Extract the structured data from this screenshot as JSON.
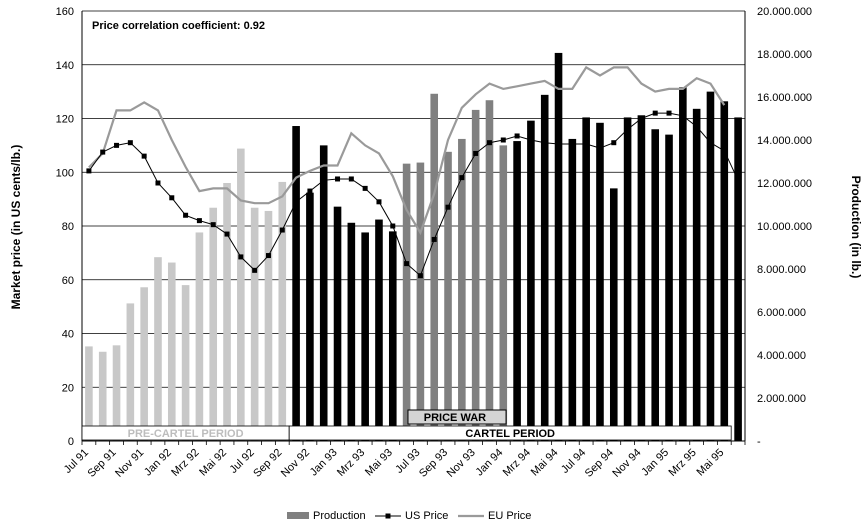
{
  "chart_data": {
    "type": "bar",
    "annotation": "Price correlation coefficient: 0.92",
    "ylabel_left": "Market price (in US cents/lb.)",
    "ylabel_right": "Production (in lb.)",
    "ylim_left": [
      0,
      160
    ],
    "ylim_right": [
      0,
      20000000
    ],
    "y_ticks_left": [
      "0",
      "20",
      "40",
      "60",
      "80",
      "100",
      "120",
      "140",
      "160"
    ],
    "y_ticks_right": [
      "-",
      "2.000.000",
      "4.000.000",
      "6.000.000",
      "8.000.000",
      "10.000.000",
      "12.000.000",
      "14.000.000",
      "16.000.000",
      "18.000.000",
      "20.000.000"
    ],
    "x_tick_labels": [
      "Jul 91",
      "Sep 91",
      "Nov 91",
      "Jan 92",
      "Mrz 92",
      "Mai 92",
      "Jul 92",
      "Sep 92",
      "Nov 92",
      "Jan 93",
      "Mrz 93",
      "Mai 93",
      "Jul 93",
      "Sep 93",
      "Nov 93",
      "Jan 94",
      "Mrz 94",
      "Mai 94",
      "Jul 94",
      "Sep 94",
      "Nov 94",
      "Jan 95",
      "Mrz 95",
      "Mai 95"
    ],
    "grid": "horizontal",
    "legend_position": "bottom",
    "periods": [
      {
        "label": "PRE-CARTEL PERIOD",
        "start": 0,
        "end": 15,
        "color": "#bdbdbd"
      },
      {
        "label": "PRICE WAR",
        "start": 23,
        "end": 31,
        "color": "#000000",
        "boxed": true
      },
      {
        "label": "CARTEL PERIOD",
        "start": 15,
        "end": 47,
        "color": "#000000"
      }
    ],
    "series": [
      {
        "name": "Production",
        "type": "bar",
        "axis": "right",
        "values": [
          4400000,
          4150000,
          4450000,
          6400000,
          7150000,
          8550000,
          8300000,
          7250000,
          9700000,
          10850000,
          12000000,
          13600000,
          10850000,
          10700000,
          12050000,
          14650000,
          11550000,
          13750000,
          10900000,
          10150000,
          9700000,
          10300000,
          9750000,
          12900000,
          12950000,
          16150000,
          13450000,
          14050000,
          15400000,
          15850000,
          13750000,
          13950000,
          14900000,
          16100000,
          18050000,
          14050000,
          15050000,
          14800000,
          11750000,
          15050000,
          15150000,
          14500000,
          14250000,
          16450000,
          15450000,
          16250000,
          15800000,
          15050000
        ],
        "bar_colors": [
          "#c8c8c8",
          "#c8c8c8",
          "#c8c8c8",
          "#c8c8c8",
          "#c8c8c8",
          "#c8c8c8",
          "#c8c8c8",
          "#c8c8c8",
          "#c8c8c8",
          "#c8c8c8",
          "#c8c8c8",
          "#c8c8c8",
          "#c8c8c8",
          "#c8c8c8",
          "#c8c8c8",
          "#000000",
          "#000000",
          "#000000",
          "#000000",
          "#000000",
          "#000000",
          "#000000",
          "#000000",
          "#808080",
          "#808080",
          "#808080",
          "#808080",
          "#808080",
          "#808080",
          "#808080",
          "#808080",
          "#000000",
          "#000000",
          "#000000",
          "#000000",
          "#000000",
          "#000000",
          "#000000",
          "#000000",
          "#000000",
          "#000000",
          "#000000",
          "#000000",
          "#000000",
          "#000000",
          "#000000",
          "#000000",
          "#000000"
        ]
      },
      {
        "name": "US Price",
        "type": "line",
        "axis": "left",
        "color": "#000000",
        "marker": "square",
        "values": [
          null,
          null,
          null,
          null,
          null,
          null,
          null,
          null,
          null,
          null,
          null,
          null,
          null,
          null,
          null,
          null,
          null,
          null,
          null,
          null,
          null,
          null,
          null,
          null,
          null,
          null,
          null,
          null,
          null,
          null,
          null,
          null,
          null,
          null,
          null,
          null,
          null,
          null,
          null,
          null,
          null,
          null,
          null,
          null,
          null,
          null,
          null,
          null
        ]
      },
      {
        "name": "EU Price",
        "type": "line",
        "axis": "left",
        "color": "#9a9a9a",
        "values": [
          101.8,
          107,
          123,
          123,
          126,
          123,
          112,
          102,
          93,
          94,
          94,
          89.5,
          88.5,
          88.5,
          91,
          98,
          100.5,
          102.5,
          102.5,
          114.5,
          110,
          107,
          98.5,
          86,
          77.5,
          92,
          112,
          124,
          129,
          133,
          131,
          132,
          133,
          134,
          131,
          131,
          139,
          136,
          139,
          139,
          133,
          130,
          131,
          131,
          135,
          133,
          125,
          null
        ]
      }
    ],
    "us_price_values": [
      100.5,
      107.5,
      110,
      111,
      106,
      96,
      90.5,
      84,
      82,
      80.5,
      77,
      68.5,
      63.5,
      69,
      78.5,
      89,
      93,
      97,
      97.5,
      97.5,
      94,
      89,
      80,
      66,
      61.5,
      75,
      87,
      98,
      107,
      111,
      112,
      113.5,
      112,
      111,
      110.5,
      110.5,
      110.5,
      109,
      111,
      116,
      120,
      122,
      122,
      121,
      117,
      111,
      108,
      97
    ]
  },
  "legend": [
    {
      "label": "Production",
      "kind": "bar",
      "color": "#808080"
    },
    {
      "label": "US Price",
      "kind": "line-marker",
      "color": "#000000"
    },
    {
      "label": "EU Price",
      "kind": "line",
      "color": "#9a9a9a"
    }
  ]
}
